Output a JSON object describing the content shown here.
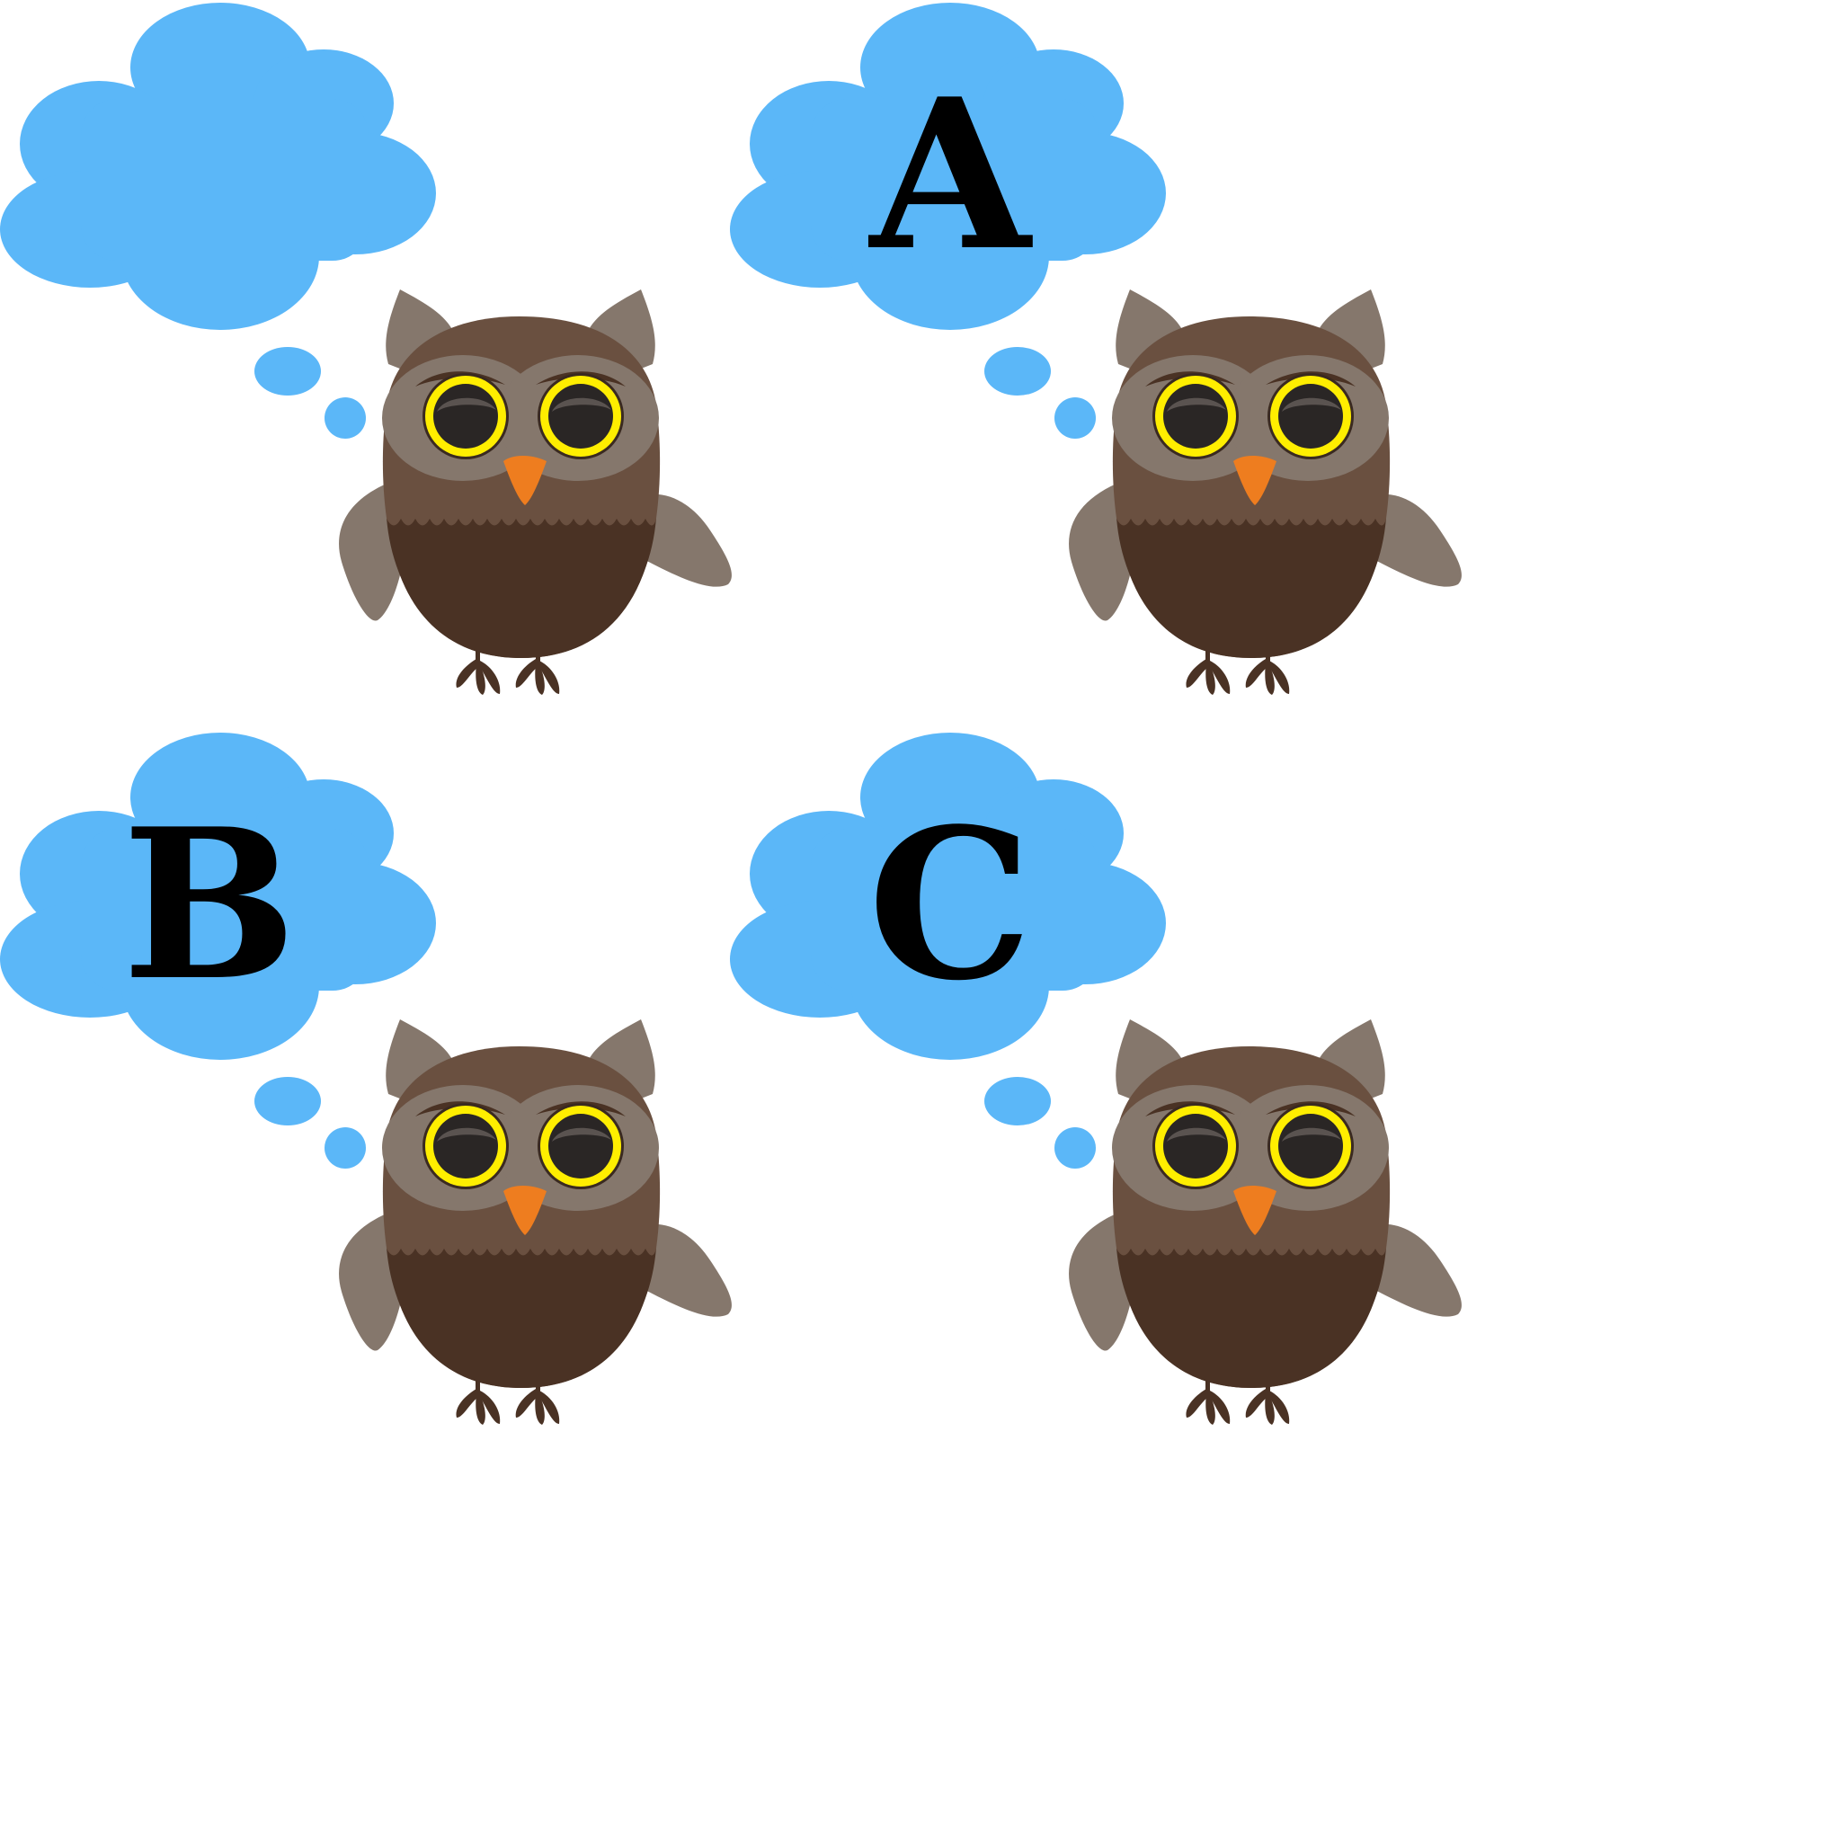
{
  "colors": {
    "background": "#ffffff",
    "cloud": "#5bb7f8",
    "owl_ear_wing": "#85776c",
    "owl_head": "#6a5040",
    "owl_face_disc": "#85776c",
    "owl_belly": "#4a3224",
    "owl_feet": "#4a3224",
    "eye_ring": "#ffee00",
    "eye_pupil": "#2a2625",
    "beak": "#ee7d1f",
    "letter": "#000000"
  },
  "panels": [
    {
      "id": "owl-1",
      "thought": "",
      "icon": "owl-icon"
    },
    {
      "id": "owl-2",
      "thought": "A",
      "icon": "owl-icon"
    },
    {
      "id": "owl-3",
      "thought": "B",
      "icon": "owl-icon"
    },
    {
      "id": "owl-4",
      "thought": "C",
      "icon": "owl-icon"
    }
  ]
}
